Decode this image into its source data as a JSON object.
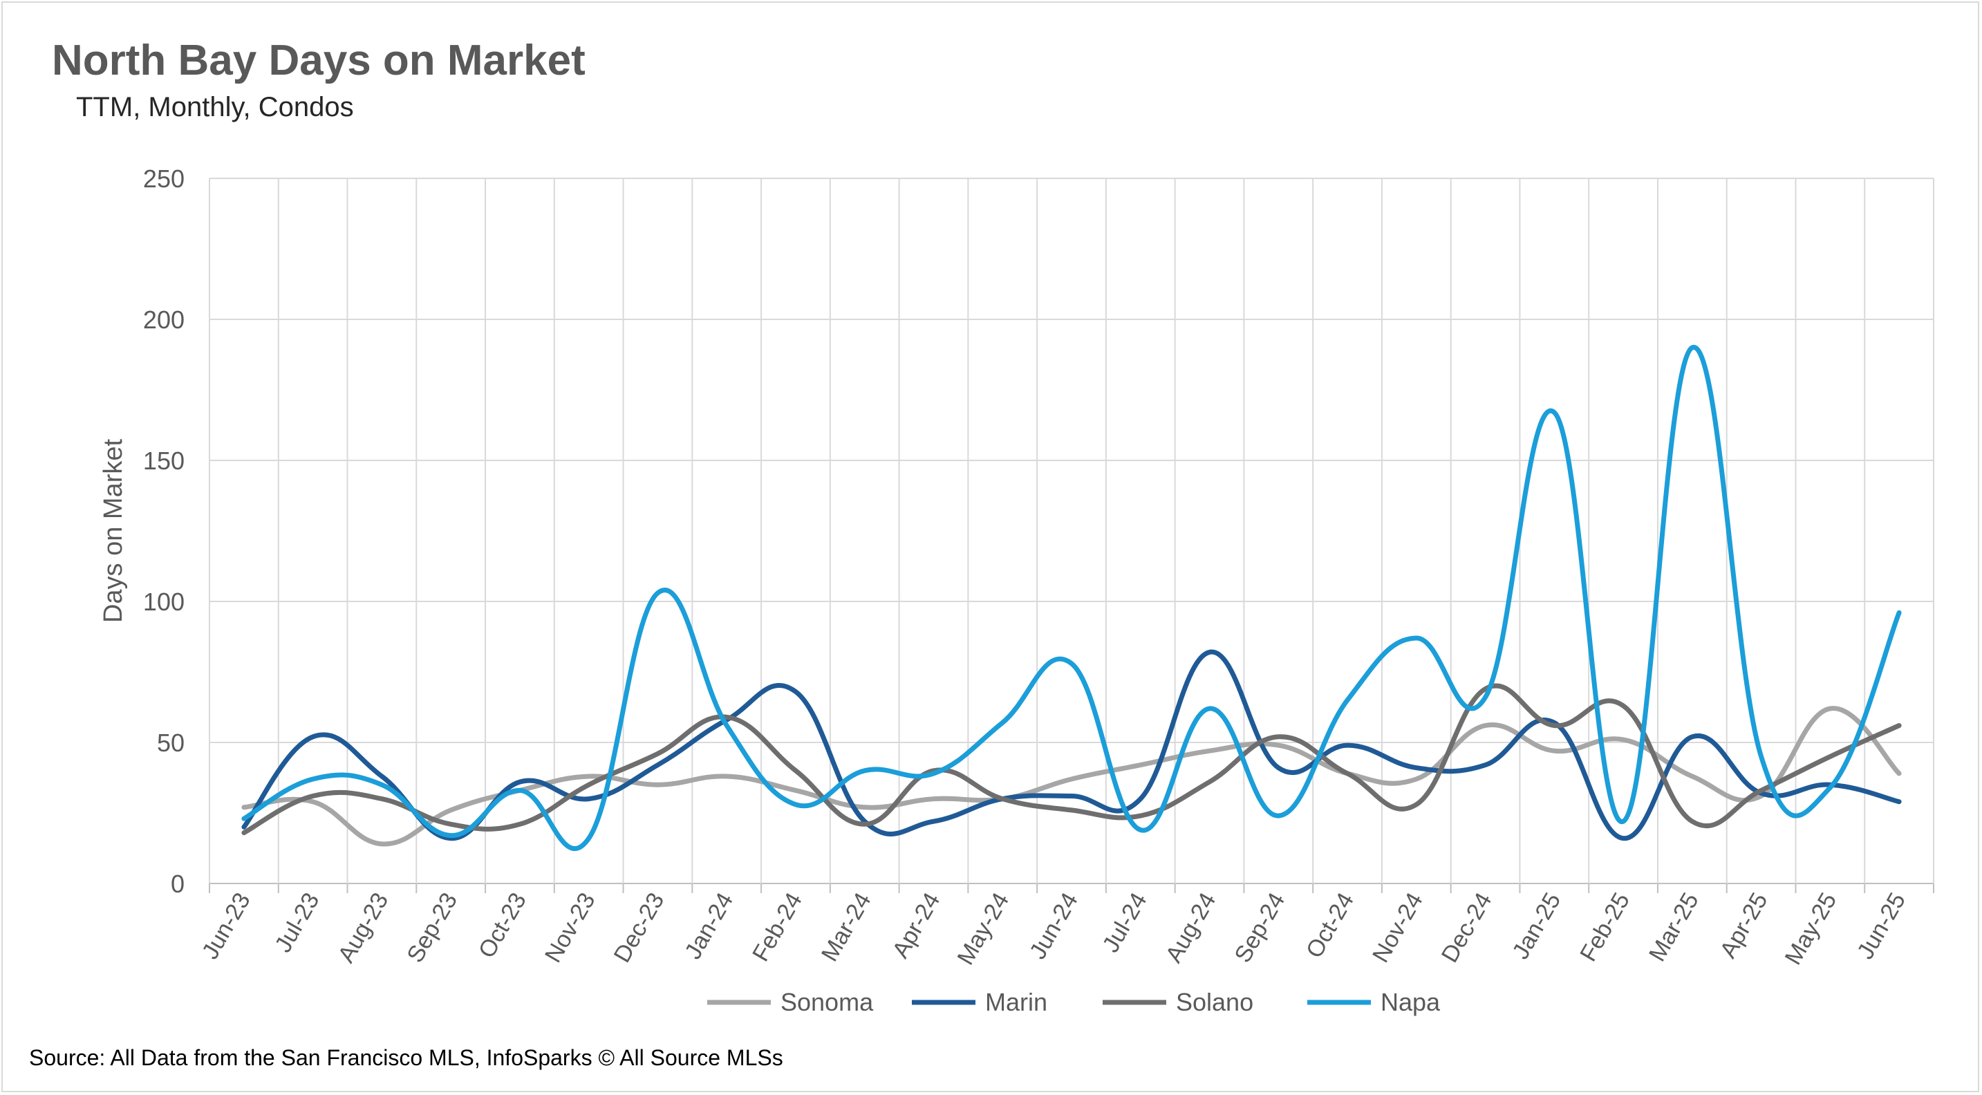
{
  "title": "North Bay Days on Market",
  "subtitle": "TTM, Monthly, Condos",
  "source": "Source: All Data from the San Francisco MLS, InfoSparks © All Source MLSs",
  "chart_data": {
    "type": "line",
    "title": "North Bay Days on Market",
    "subtitle": "TTM, Monthly, Condos",
    "xlabel": "",
    "ylabel": "Days on Market",
    "ylim": [
      0,
      250
    ],
    "yticks": [
      0,
      50,
      100,
      150,
      200,
      250
    ],
    "grid": true,
    "legend": "bottom",
    "categories": [
      "Jun-23",
      "Jul-23",
      "Aug-23",
      "Sep-23",
      "Oct-23",
      "Nov-23",
      "Dec-23",
      "Jan-24",
      "Feb-24",
      "Mar-24",
      "Apr-24",
      "May-24",
      "Jun-24",
      "Jul-24",
      "Aug-24",
      "Sep-24",
      "Oct-24",
      "Nov-24",
      "Dec-24",
      "Jan-25",
      "Feb-25",
      "Mar-25",
      "Apr-25",
      "May-25",
      "Jun-25"
    ],
    "series": [
      {
        "name": "Sonoma",
        "color": "#a6a6a6",
        "values": [
          27,
          29,
          14,
          26,
          33,
          38,
          35,
          38,
          33,
          27,
          30,
          30,
          37,
          42,
          47,
          49,
          39,
          37,
          56,
          47,
          51,
          38,
          31,
          62,
          39
        ]
      },
      {
        "name": "Marin",
        "color": "#1f5a96",
        "values": [
          20,
          52,
          38,
          16,
          36,
          30,
          42,
          58,
          68,
          22,
          22,
          30,
          31,
          30,
          82,
          41,
          49,
          41,
          42,
          57,
          16,
          52,
          32,
          35,
          29
        ]
      },
      {
        "name": "Solano",
        "color": "#6e6e6e",
        "values": [
          18,
          31,
          30,
          21,
          21,
          35,
          46,
          59,
          40,
          21,
          40,
          30,
          26,
          24,
          36,
          52,
          39,
          28,
          69,
          56,
          63,
          22,
          33,
          45,
          56
        ]
      },
      {
        "name": "Napa",
        "color": "#1b9ed9",
        "values": [
          23,
          37,
          35,
          17,
          33,
          16,
          103,
          56,
          28,
          40,
          39,
          57,
          78,
          19,
          62,
          24,
          65,
          87,
          66,
          167,
          22,
          190,
          45,
          34,
          96
        ]
      }
    ]
  }
}
